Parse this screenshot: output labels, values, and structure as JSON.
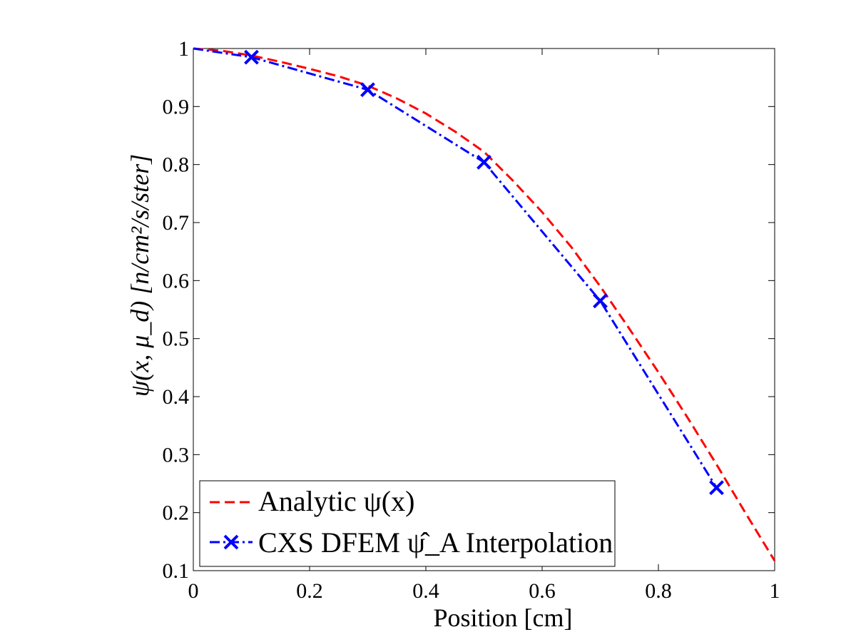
{
  "chart_data": {
    "type": "line",
    "xlabel": "Position [cm]",
    "ylabel": "ψ(x, μ_d)  [n/cm²/s/ster]",
    "xlim": [
      0,
      1
    ],
    "ylim": [
      0.1,
      1
    ],
    "xticks": [
      0,
      0.2,
      0.4,
      0.6,
      0.8,
      1
    ],
    "xtick_labels": [
      "0",
      "0.2",
      "0.4",
      "0.6",
      "0.8",
      "1"
    ],
    "yticks": [
      0.1,
      0.2,
      0.3,
      0.4,
      0.5,
      0.6,
      0.7,
      0.8,
      0.9,
      1
    ],
    "ytick_labels": [
      "0.1",
      "0.2",
      "0.3",
      "0.4",
      "0.5",
      "0.6",
      "0.7",
      "0.8",
      "0.9",
      "1"
    ],
    "grid": false,
    "legend_position": "bottom-left",
    "series": [
      {
        "name": "Analytic ψ(x)",
        "color": "#ff0000",
        "style": "dashed",
        "marker": "none",
        "x": [
          0,
          0.05,
          0.1,
          0.15,
          0.2,
          0.25,
          0.3,
          0.35,
          0.4,
          0.45,
          0.5,
          0.55,
          0.6,
          0.65,
          0.7,
          0.75,
          0.8,
          0.85,
          0.9,
          0.95,
          1.0
        ],
        "y": [
          1.0,
          0.996,
          0.988,
          0.977,
          0.965,
          0.952,
          0.936,
          0.914,
          0.888,
          0.857,
          0.822,
          0.772,
          0.718,
          0.658,
          0.59,
          0.517,
          0.442,
          0.364,
          0.283,
          0.199,
          0.117
        ]
      },
      {
        "name": "CXS DFEM ψ̂_A Interpolation",
        "color": "#0000ff",
        "style": "dashdot",
        "marker": "x",
        "x": [
          0,
          0.1,
          0.3,
          0.5,
          0.7,
          0.9
        ],
        "y": [
          1.0,
          0.985,
          0.929,
          0.804,
          0.565,
          0.243
        ]
      }
    ]
  }
}
